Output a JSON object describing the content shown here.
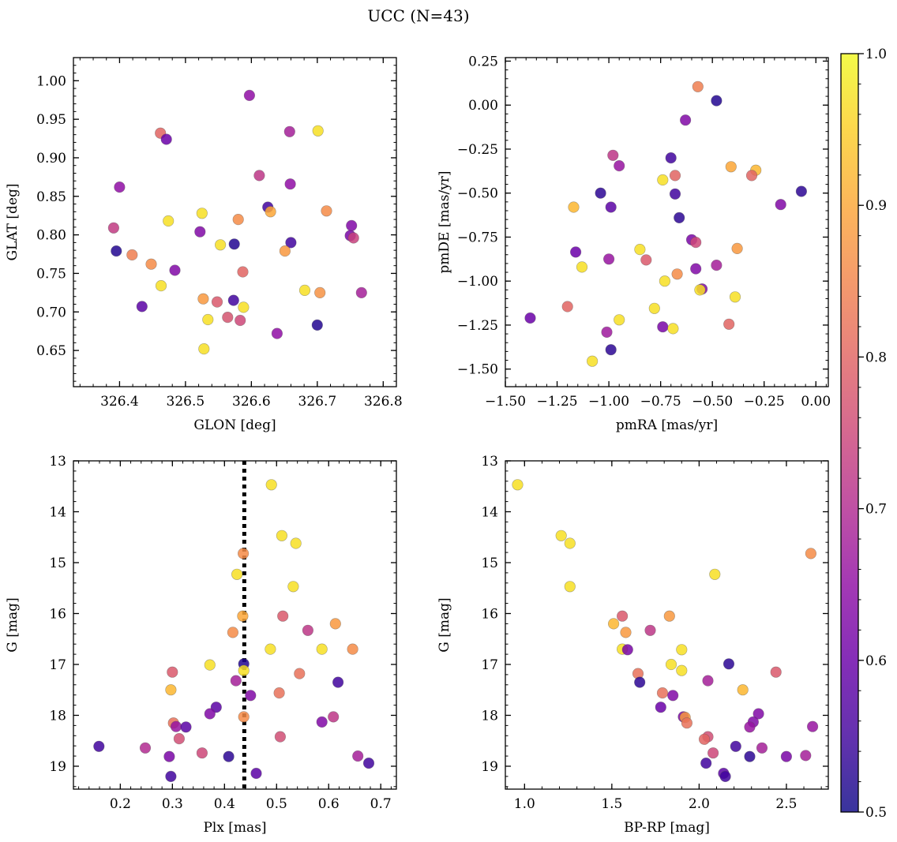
{
  "figure": {
    "title": "UCC (N=43)"
  },
  "colorbar": {
    "cmap": "plasma",
    "vmin": 0.5,
    "vmax": 1.0,
    "ticks": [
      "0.5",
      "0.6",
      "0.7",
      "0.8",
      "0.9",
      "1.0"
    ]
  },
  "chart_data": [
    {
      "type": "scatter",
      "xlabel": "GLON [deg]",
      "ylabel": "GLAT [deg]",
      "xlim": [
        326.33,
        326.82
      ],
      "ylim": [
        0.603,
        1.03
      ],
      "xticks": [
        326.4,
        326.5,
        326.6,
        326.7,
        326.8
      ],
      "xticklabels": [
        "326.4",
        "326.5",
        "326.6",
        "326.7",
        "326.8"
      ],
      "yticks": [
        0.65,
        0.7,
        0.75,
        0.8,
        0.85,
        0.9,
        0.95,
        1.0
      ],
      "yticklabels": [
        "0.65",
        "0.70",
        "0.75",
        "0.80",
        "0.85",
        "0.90",
        "0.95",
        "1.00"
      ],
      "points": [
        {
          "x": 326.597,
          "y": 0.981,
          "c": 0.65
        },
        {
          "x": 326.462,
          "y": 0.932,
          "c": 0.8
        },
        {
          "x": 326.471,
          "y": 0.924,
          "c": 0.6
        },
        {
          "x": 326.658,
          "y": 0.934,
          "c": 0.68
        },
        {
          "x": 326.701,
          "y": 0.935,
          "c": 0.97
        },
        {
          "x": 326.4,
          "y": 0.862,
          "c": 0.65
        },
        {
          "x": 326.612,
          "y": 0.877,
          "c": 0.72
        },
        {
          "x": 326.659,
          "y": 0.866,
          "c": 0.65
        },
        {
          "x": 326.625,
          "y": 0.836,
          "c": 0.55
        },
        {
          "x": 326.629,
          "y": 0.83,
          "c": 0.9
        },
        {
          "x": 326.714,
          "y": 0.831,
          "c": 0.86
        },
        {
          "x": 326.525,
          "y": 0.828,
          "c": 0.97
        },
        {
          "x": 326.58,
          "y": 0.82,
          "c": 0.86
        },
        {
          "x": 326.474,
          "y": 0.818,
          "c": 0.97
        },
        {
          "x": 326.752,
          "y": 0.812,
          "c": 0.63
        },
        {
          "x": 326.391,
          "y": 0.809,
          "c": 0.73
        },
        {
          "x": 326.522,
          "y": 0.804,
          "c": 0.63
        },
        {
          "x": 326.75,
          "y": 0.799,
          "c": 0.62
        },
        {
          "x": 326.755,
          "y": 0.796,
          "c": 0.74
        },
        {
          "x": 326.66,
          "y": 0.79,
          "c": 0.55
        },
        {
          "x": 326.574,
          "y": 0.788,
          "c": 0.52
        },
        {
          "x": 326.553,
          "y": 0.787,
          "c": 0.97
        },
        {
          "x": 326.395,
          "y": 0.779,
          "c": 0.52
        },
        {
          "x": 326.651,
          "y": 0.779,
          "c": 0.88
        },
        {
          "x": 326.419,
          "y": 0.774,
          "c": 0.84
        },
        {
          "x": 326.448,
          "y": 0.762,
          "c": 0.86
        },
        {
          "x": 326.484,
          "y": 0.754,
          "c": 0.63
        },
        {
          "x": 326.587,
          "y": 0.752,
          "c": 0.8
        },
        {
          "x": 326.463,
          "y": 0.734,
          "c": 0.97
        },
        {
          "x": 326.681,
          "y": 0.728,
          "c": 0.97
        },
        {
          "x": 326.704,
          "y": 0.725,
          "c": 0.87
        },
        {
          "x": 326.767,
          "y": 0.725,
          "c": 0.68
        },
        {
          "x": 326.527,
          "y": 0.717,
          "c": 0.88
        },
        {
          "x": 326.573,
          "y": 0.715,
          "c": 0.55
        },
        {
          "x": 326.548,
          "y": 0.713,
          "c": 0.78
        },
        {
          "x": 326.434,
          "y": 0.707,
          "c": 0.58
        },
        {
          "x": 326.588,
          "y": 0.706,
          "c": 0.97
        },
        {
          "x": 326.564,
          "y": 0.693,
          "c": 0.77
        },
        {
          "x": 326.534,
          "y": 0.69,
          "c": 0.97
        },
        {
          "x": 326.583,
          "y": 0.689,
          "c": 0.75
        },
        {
          "x": 326.7,
          "y": 0.683,
          "c": 0.52
        },
        {
          "x": 326.639,
          "y": 0.672,
          "c": 0.65
        },
        {
          "x": 326.528,
          "y": 0.652,
          "c": 0.97
        }
      ]
    },
    {
      "type": "scatter",
      "xlabel": "pmRA [mas/yr]",
      "ylabel": "pmDE [mas/yr]",
      "xlim": [
        -1.5,
        0.06
      ],
      "ylim": [
        -1.6,
        0.27
      ],
      "xticks": [
        -1.5,
        -1.25,
        -1.0,
        -0.75,
        -0.5,
        -0.25,
        0.0
      ],
      "xticklabels": [
        "−1.50",
        "−1.25",
        "−1.00",
        "−0.75",
        "−0.50",
        "−0.25",
        "0.00"
      ],
      "yticks": [
        -1.5,
        -1.25,
        -1.0,
        -0.75,
        -0.5,
        -0.25,
        0.0,
        0.25
      ],
      "yticklabels": [
        "−1.50",
        "−1.25",
        "−1.00",
        "−0.75",
        "−0.50",
        "−0.25",
        "0.00",
        "0.25"
      ],
      "points": [
        {
          "x": -0.57,
          "y": 0.105,
          "c": 0.84
        },
        {
          "x": -0.48,
          "y": 0.025,
          "c": 0.52
        },
        {
          "x": -0.63,
          "y": -0.085,
          "c": 0.63
        },
        {
          "x": -0.98,
          "y": -0.285,
          "c": 0.72
        },
        {
          "x": -0.7,
          "y": -0.3,
          "c": 0.55
        },
        {
          "x": -0.95,
          "y": -0.345,
          "c": 0.66
        },
        {
          "x": -0.41,
          "y": -0.35,
          "c": 0.9
        },
        {
          "x": -0.29,
          "y": -0.37,
          "c": 0.92
        },
        {
          "x": -0.31,
          "y": -0.4,
          "c": 0.8
        },
        {
          "x": -0.68,
          "y": -0.4,
          "c": 0.8
        },
        {
          "x": -0.74,
          "y": -0.425,
          "c": 0.97
        },
        {
          "x": -1.04,
          "y": -0.5,
          "c": 0.53
        },
        {
          "x": -0.68,
          "y": -0.505,
          "c": 0.55
        },
        {
          "x": -0.07,
          "y": -0.49,
          "c": 0.53
        },
        {
          "x": -0.17,
          "y": -0.565,
          "c": 0.63
        },
        {
          "x": -1.17,
          "y": -0.58,
          "c": 0.92
        },
        {
          "x": -0.99,
          "y": -0.58,
          "c": 0.58
        },
        {
          "x": -0.66,
          "y": -0.64,
          "c": 0.53
        },
        {
          "x": -0.6,
          "y": -0.765,
          "c": 0.62
        },
        {
          "x": -0.58,
          "y": -0.78,
          "c": 0.75
        },
        {
          "x": -0.38,
          "y": -0.815,
          "c": 0.88
        },
        {
          "x": -0.85,
          "y": -0.82,
          "c": 0.97
        },
        {
          "x": -1.16,
          "y": -0.835,
          "c": 0.6
        },
        {
          "x": -0.82,
          "y": -0.88,
          "c": 0.78
        },
        {
          "x": -1.0,
          "y": -0.875,
          "c": 0.66
        },
        {
          "x": -0.48,
          "y": -0.91,
          "c": 0.68
        },
        {
          "x": -1.13,
          "y": -0.92,
          "c": 0.97
        },
        {
          "x": -0.58,
          "y": -0.93,
          "c": 0.63
        },
        {
          "x": -0.67,
          "y": -0.96,
          "c": 0.86
        },
        {
          "x": -0.73,
          "y": -1.0,
          "c": 0.97
        },
        {
          "x": -0.55,
          "y": -1.045,
          "c": 0.63
        },
        {
          "x": -0.56,
          "y": -1.05,
          "c": 0.97
        },
        {
          "x": -0.39,
          "y": -1.09,
          "c": 0.97
        },
        {
          "x": -1.2,
          "y": -1.145,
          "c": 0.8
        },
        {
          "x": -0.78,
          "y": -1.155,
          "c": 0.97
        },
        {
          "x": -1.38,
          "y": -1.21,
          "c": 0.6
        },
        {
          "x": -0.95,
          "y": -1.22,
          "c": 0.97
        },
        {
          "x": -0.42,
          "y": -1.245,
          "c": 0.8
        },
        {
          "x": -0.74,
          "y": -1.26,
          "c": 0.62
        },
        {
          "x": -0.69,
          "y": -1.27,
          "c": 0.97
        },
        {
          "x": -1.01,
          "y": -1.29,
          "c": 0.67
        },
        {
          "x": -0.99,
          "y": -1.39,
          "c": 0.53
        },
        {
          "x": -1.08,
          "y": -1.455,
          "c": 0.97
        }
      ]
    },
    {
      "type": "scatter",
      "xlabel": "Plx [mas]",
      "ylabel": "G [mag]",
      "xlim": [
        0.11,
        0.73
      ],
      "ylim": [
        19.45,
        13.0
      ],
      "inverted_y": true,
      "vline": {
        "x": 0.438,
        "style": "dotted"
      },
      "xticks": [
        0.2,
        0.3,
        0.4,
        0.5,
        0.6,
        0.7
      ],
      "xticklabels": [
        "0.2",
        "0.3",
        "0.4",
        "0.5",
        "0.6",
        "0.7"
      ],
      "yticks": [
        13,
        14,
        15,
        16,
        17,
        18,
        19
      ],
      "yticklabels": [
        "13",
        "14",
        "15",
        "16",
        "17",
        "18",
        "19"
      ],
      "points": [
        {
          "x": 0.49,
          "y": 13.47,
          "c": 0.97
        },
        {
          "x": 0.51,
          "y": 14.47,
          "c": 0.97
        },
        {
          "x": 0.537,
          "y": 14.62,
          "c": 0.97
        },
        {
          "x": 0.436,
          "y": 14.82,
          "c": 0.86
        },
        {
          "x": 0.424,
          "y": 15.23,
          "c": 0.97
        },
        {
          "x": 0.532,
          "y": 15.47,
          "c": 0.97
        },
        {
          "x": 0.435,
          "y": 16.05,
          "c": 0.9
        },
        {
          "x": 0.512,
          "y": 16.05,
          "c": 0.78
        },
        {
          "x": 0.416,
          "y": 16.37,
          "c": 0.86
        },
        {
          "x": 0.56,
          "y": 16.33,
          "c": 0.72
        },
        {
          "x": 0.613,
          "y": 16.2,
          "c": 0.88
        },
        {
          "x": 0.488,
          "y": 16.7,
          "c": 0.97
        },
        {
          "x": 0.587,
          "y": 16.7,
          "c": 0.97
        },
        {
          "x": 0.646,
          "y": 16.7,
          "c": 0.86
        },
        {
          "x": 0.372,
          "y": 17.01,
          "c": 0.97
        },
        {
          "x": 0.437,
          "y": 16.99,
          "c": 0.52
        },
        {
          "x": 0.3,
          "y": 17.15,
          "c": 0.78
        },
        {
          "x": 0.544,
          "y": 17.18,
          "c": 0.82
        },
        {
          "x": 0.437,
          "y": 17.12,
          "c": 0.97
        },
        {
          "x": 0.422,
          "y": 17.32,
          "c": 0.68
        },
        {
          "x": 0.618,
          "y": 17.35,
          "c": 0.55
        },
        {
          "x": 0.297,
          "y": 17.5,
          "c": 0.92
        },
        {
          "x": 0.505,
          "y": 17.56,
          "c": 0.82
        },
        {
          "x": 0.45,
          "y": 17.61,
          "c": 0.63
        },
        {
          "x": 0.384,
          "y": 17.84,
          "c": 0.58
        },
        {
          "x": 0.372,
          "y": 17.97,
          "c": 0.63
        },
        {
          "x": 0.437,
          "y": 18.03,
          "c": 0.86
        },
        {
          "x": 0.609,
          "y": 18.03,
          "c": 0.72
        },
        {
          "x": 0.302,
          "y": 18.15,
          "c": 0.82
        },
        {
          "x": 0.587,
          "y": 18.13,
          "c": 0.63
        },
        {
          "x": 0.307,
          "y": 18.22,
          "c": 0.66
        },
        {
          "x": 0.326,
          "y": 18.23,
          "c": 0.58
        },
        {
          "x": 0.313,
          "y": 18.46,
          "c": 0.76
        },
        {
          "x": 0.507,
          "y": 18.42,
          "c": 0.76
        },
        {
          "x": 0.159,
          "y": 18.61,
          "c": 0.55
        },
        {
          "x": 0.248,
          "y": 18.64,
          "c": 0.7
        },
        {
          "x": 0.357,
          "y": 18.74,
          "c": 0.75
        },
        {
          "x": 0.294,
          "y": 18.81,
          "c": 0.62
        },
        {
          "x": 0.408,
          "y": 18.81,
          "c": 0.53
        },
        {
          "x": 0.656,
          "y": 18.8,
          "c": 0.68
        },
        {
          "x": 0.677,
          "y": 18.94,
          "c": 0.55
        },
        {
          "x": 0.461,
          "y": 19.14,
          "c": 0.58
        },
        {
          "x": 0.297,
          "y": 19.2,
          "c": 0.55
        }
      ]
    },
    {
      "type": "scatter",
      "xlabel": "BP-RP [mag]",
      "ylabel": "G [mag]",
      "xlim": [
        0.89,
        2.74
      ],
      "ylim": [
        19.45,
        13.0
      ],
      "inverted_y": true,
      "xticks": [
        1.0,
        1.5,
        2.0,
        2.5
      ],
      "xticklabels": [
        "1.0",
        "1.5",
        "2.0",
        "2.5"
      ],
      "yticks": [
        13,
        14,
        15,
        16,
        17,
        18,
        19
      ],
      "yticklabels": [
        "13",
        "14",
        "15",
        "16",
        "17",
        "18",
        "19"
      ],
      "points": [
        {
          "x": 0.96,
          "y": 13.47,
          "c": 0.97
        },
        {
          "x": 1.21,
          "y": 14.47,
          "c": 0.97
        },
        {
          "x": 1.26,
          "y": 14.62,
          "c": 0.97
        },
        {
          "x": 2.64,
          "y": 14.82,
          "c": 0.86
        },
        {
          "x": 2.09,
          "y": 15.23,
          "c": 0.97
        },
        {
          "x": 1.26,
          "y": 15.47,
          "c": 0.97
        },
        {
          "x": 1.56,
          "y": 16.05,
          "c": 0.78
        },
        {
          "x": 1.83,
          "y": 16.05,
          "c": 0.88
        },
        {
          "x": 1.51,
          "y": 16.2,
          "c": 0.92
        },
        {
          "x": 1.58,
          "y": 16.37,
          "c": 0.88
        },
        {
          "x": 1.72,
          "y": 16.33,
          "c": 0.72
        },
        {
          "x": 1.56,
          "y": 16.7,
          "c": 0.97
        },
        {
          "x": 1.59,
          "y": 16.71,
          "c": 0.62
        },
        {
          "x": 1.9,
          "y": 16.71,
          "c": 0.97
        },
        {
          "x": 1.84,
          "y": 17.0,
          "c": 0.97
        },
        {
          "x": 2.17,
          "y": 16.99,
          "c": 0.53
        },
        {
          "x": 1.65,
          "y": 17.18,
          "c": 0.82
        },
        {
          "x": 2.44,
          "y": 17.15,
          "c": 0.78
        },
        {
          "x": 1.9,
          "y": 17.12,
          "c": 0.97
        },
        {
          "x": 1.66,
          "y": 17.35,
          "c": 0.53
        },
        {
          "x": 2.05,
          "y": 17.32,
          "c": 0.68
        },
        {
          "x": 2.25,
          "y": 17.5,
          "c": 0.92
        },
        {
          "x": 1.79,
          "y": 17.56,
          "c": 0.82
        },
        {
          "x": 1.85,
          "y": 17.61,
          "c": 0.63
        },
        {
          "x": 1.78,
          "y": 17.84,
          "c": 0.6
        },
        {
          "x": 2.34,
          "y": 17.97,
          "c": 0.63
        },
        {
          "x": 1.91,
          "y": 18.03,
          "c": 0.62
        },
        {
          "x": 1.92,
          "y": 18.04,
          "c": 0.88
        },
        {
          "x": 1.93,
          "y": 18.15,
          "c": 0.82
        },
        {
          "x": 2.31,
          "y": 18.13,
          "c": 0.63
        },
        {
          "x": 2.29,
          "y": 18.23,
          "c": 0.66
        },
        {
          "x": 2.65,
          "y": 18.22,
          "c": 0.66
        },
        {
          "x": 2.05,
          "y": 18.42,
          "c": 0.76
        },
        {
          "x": 2.03,
          "y": 18.47,
          "c": 0.8
        },
        {
          "x": 2.21,
          "y": 18.61,
          "c": 0.55
        },
        {
          "x": 2.36,
          "y": 18.64,
          "c": 0.68
        },
        {
          "x": 2.08,
          "y": 18.74,
          "c": 0.75
        },
        {
          "x": 2.29,
          "y": 18.81,
          "c": 0.53
        },
        {
          "x": 2.5,
          "y": 18.81,
          "c": 0.62
        },
        {
          "x": 2.61,
          "y": 18.79,
          "c": 0.68
        },
        {
          "x": 2.04,
          "y": 18.94,
          "c": 0.55
        },
        {
          "x": 2.14,
          "y": 19.14,
          "c": 0.58
        },
        {
          "x": 2.15,
          "y": 19.2,
          "c": 0.55
        }
      ]
    }
  ]
}
